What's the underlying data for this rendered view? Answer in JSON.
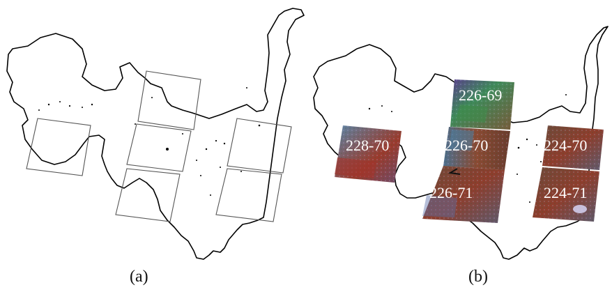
{
  "panels": {
    "a": {
      "label": "(a)"
    },
    "b": {
      "label": "(b)",
      "tiles": [
        {
          "label": "226-69"
        },
        {
          "label": "228-70"
        },
        {
          "label": "226-70"
        },
        {
          "label": "224-70"
        },
        {
          "label": "226-71"
        },
        {
          "label": "224-71"
        }
      ]
    }
  },
  "colors": {
    "boundary": "#000000",
    "frame": "#555555",
    "scene_red": "#8a3b2a",
    "scene_green": "#3f8a4a",
    "scene_blue": "#5a6fa8",
    "scene_purple": "#7a4fa8",
    "label_text": "#ffffff"
  }
}
